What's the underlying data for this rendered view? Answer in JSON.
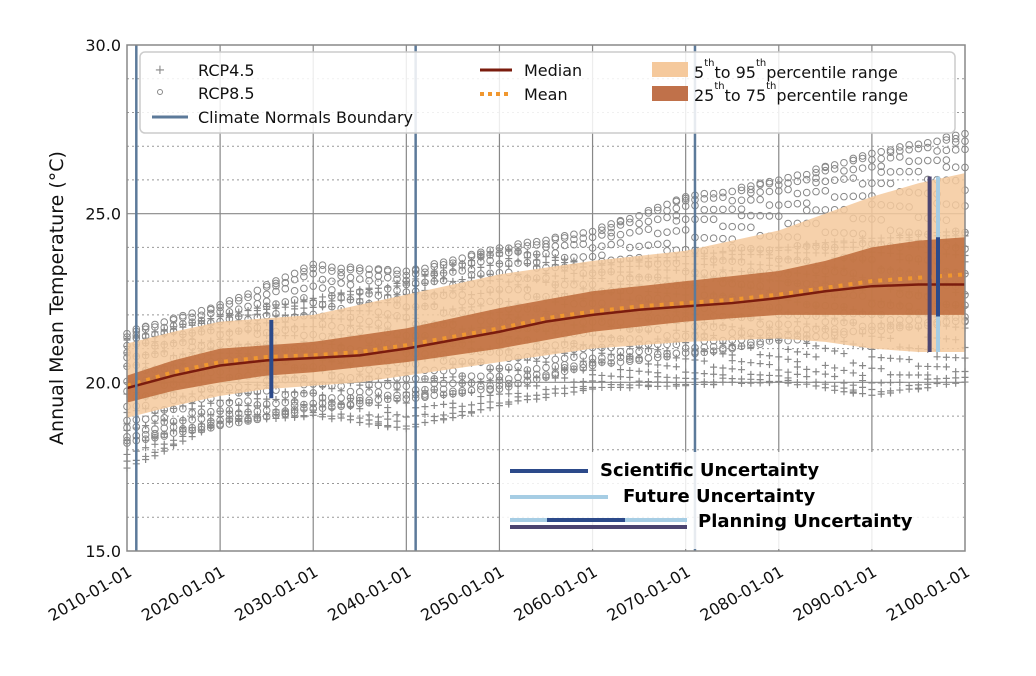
{
  "chart_data": {
    "type": "line",
    "title": "",
    "xlabel": "",
    "ylabel": "Annual Mean Temperature (°C)",
    "xlim": [
      2010,
      2100
    ],
    "ylim": [
      15.0,
      30.0
    ],
    "x_tick_labels": [
      "2010-01-01",
      "2020-01-01",
      "2030-01-01",
      "2040-01-01",
      "2050-01-01",
      "2060-01-01",
      "2070-01-01",
      "2080-01-01",
      "2090-01-01",
      "2100-01-01"
    ],
    "x_ticks": [
      2010,
      2020,
      2030,
      2040,
      2050,
      2060,
      2070,
      2080,
      2090,
      2100
    ],
    "y_tick_labels": [
      "15.0",
      "20.0",
      "25.0",
      "30.0"
    ],
    "y_ticks": [
      15,
      20,
      25,
      30
    ],
    "grid": true,
    "legend_placement": "top",
    "years": [
      2010,
      2015,
      2020,
      2025,
      2030,
      2035,
      2040,
      2045,
      2050,
      2055,
      2060,
      2065,
      2070,
      2075,
      2080,
      2085,
      2090,
      2095,
      2100
    ],
    "median": [
      19.83,
      20.2,
      20.5,
      20.65,
      20.72,
      20.8,
      21.0,
      21.25,
      21.5,
      21.8,
      22.0,
      22.15,
      22.25,
      22.35,
      22.5,
      22.7,
      22.85,
      22.9,
      22.9
    ],
    "mean": [
      19.9,
      20.3,
      20.6,
      20.75,
      20.8,
      20.9,
      21.1,
      21.35,
      21.6,
      21.9,
      22.1,
      22.25,
      22.35,
      22.45,
      22.6,
      22.8,
      23.0,
      23.1,
      23.2
    ],
    "p5": [
      18.95,
      19.3,
      19.6,
      19.8,
      19.9,
      20.0,
      20.2,
      20.4,
      20.6,
      20.8,
      21.0,
      21.1,
      21.2,
      21.25,
      21.3,
      21.2,
      21.0,
      20.9,
      20.9
    ],
    "p95": [
      21.15,
      21.5,
      21.8,
      21.9,
      22.0,
      22.3,
      22.6,
      22.9,
      23.2,
      23.4,
      23.6,
      23.75,
      23.9,
      24.2,
      24.5,
      25.0,
      25.5,
      25.9,
      26.2
    ],
    "p25": [
      19.4,
      19.75,
      20.0,
      20.2,
      20.3,
      20.45,
      20.6,
      20.8,
      21.0,
      21.25,
      21.5,
      21.65,
      21.8,
      21.9,
      22.0,
      22.0,
      22.0,
      22.0,
      22.0
    ],
    "p75": [
      20.2,
      20.65,
      21.0,
      21.1,
      21.2,
      21.4,
      21.6,
      21.9,
      22.2,
      22.45,
      22.7,
      22.85,
      23.0,
      23.15,
      23.3,
      23.6,
      24.0,
      24.2,
      24.3
    ],
    "scatter": [
      {
        "name": "RCP4.5",
        "marker": "plus",
        "years": [
          2010,
          2020,
          2030,
          2040,
          2050,
          2060,
          2070,
          2080,
          2090,
          2100
        ],
        "min": [
          17.4,
          18.8,
          19.0,
          18.6,
          19.3,
          19.8,
          19.9,
          20.0,
          19.6,
          20.0
        ],
        "max": [
          21.3,
          22.0,
          22.5,
          23.0,
          24.0,
          23.5,
          23.8,
          24.0,
          24.3,
          24.5
        ]
      },
      {
        "name": "RCP8.5",
        "marker": "circle",
        "years": [
          2010,
          2020,
          2030,
          2040,
          2050,
          2060,
          2070,
          2080,
          2090,
          2100
        ],
        "min": [
          18.2,
          18.7,
          19.2,
          19.5,
          19.8,
          20.5,
          20.8,
          21.2,
          21.5,
          21.8
        ],
        "max": [
          21.5,
          22.3,
          23.5,
          23.3,
          24.0,
          24.5,
          25.5,
          26.0,
          26.8,
          27.4
        ]
      }
    ],
    "climate_normals_boundaries": [
      2011,
      2041,
      2071
    ],
    "uncertainty_bars": [
      {
        "type": "scientific",
        "year": 2025.5,
        "low": 19.53,
        "high": 21.85
      },
      {
        "type": "planning",
        "year": 2096.2,
        "low": 20.9,
        "high": 26.1
      },
      {
        "type": "future",
        "year": 2097.1,
        "low": 20.9,
        "high": 26.1
      },
      {
        "type": "scientific",
        "year": 2097.1,
        "low": 21.95,
        "high": 24.3
      }
    ],
    "legend": {
      "rcp45": "RCP4.5",
      "rcp85": "RCP8.5",
      "normals": "Climate Normals Boundary",
      "median": "Median",
      "mean": "Mean",
      "p5_95": {
        "a": "5",
        "sup1": "th",
        "b": "to 95",
        "sup2": "th",
        "c": "percentile range"
      },
      "p25_75": {
        "a": "25",
        "sup1": "th",
        "b": "to 75",
        "sup2": "th",
        "c": "percentile range"
      },
      "scientific": "Scientific Uncertainty",
      "future": "Future Uncertainty",
      "planning": "Planning Uncertainty"
    },
    "colors": {
      "scatter": "#888888",
      "band_5_95": "#f5c99c",
      "band_25_75": "#bd6a3a",
      "median": "#7b1c0e",
      "mean": "#f0972f",
      "normals": "#5c7a9a",
      "scientific": "#2c4a8a",
      "future": "#a6cde4",
      "planning": "#4b4470"
    }
  }
}
